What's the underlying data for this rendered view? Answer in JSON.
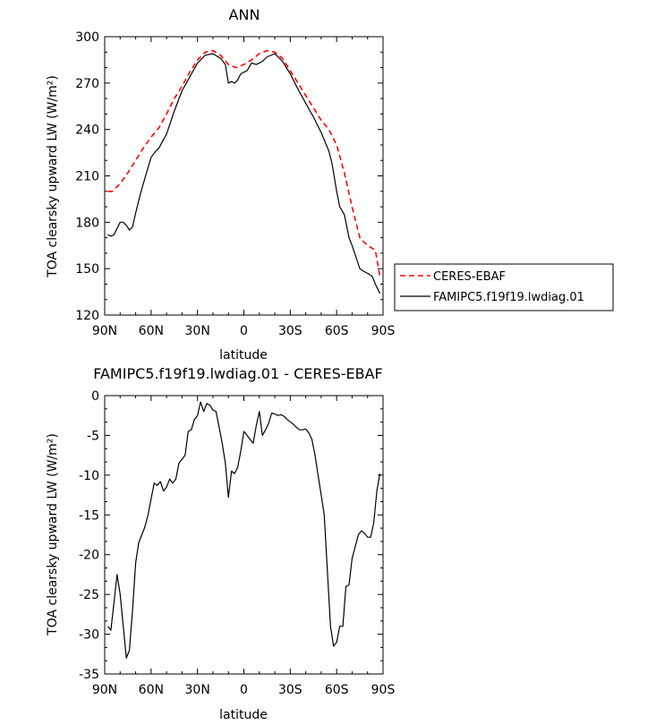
{
  "chart_data": [
    {
      "type": "line",
      "title": "ANN",
      "xlabel": "latitude",
      "ylabel": "TOA clearsky upward LW (W/m²)",
      "ylim": [
        120,
        300
      ],
      "yticks": [
        120,
        150,
        180,
        210,
        240,
        270,
        300
      ],
      "xlim": [
        90,
        -90
      ],
      "xticks": [
        90,
        60,
        30,
        0,
        -30,
        -60,
        -90
      ],
      "xticklabels": [
        "90N",
        "60N",
        "30N",
        "0",
        "30S",
        "60S",
        "90S"
      ],
      "legend": {
        "placement": "outside-right"
      },
      "series": [
        {
          "name": "CERES-EBAF",
          "color": "#ff0000",
          "dash": "dashed",
          "x": [
            88,
            85,
            80,
            75,
            70,
            65,
            60,
            55,
            50,
            45,
            40,
            35,
            30,
            25,
            20,
            15,
            10,
            5,
            0,
            -5,
            -10,
            -15,
            -20,
            -25,
            -30,
            -35,
            -40,
            -45,
            -50,
            -55,
            -60,
            -65,
            -70,
            -75,
            -80,
            -85,
            -88
          ],
          "values": [
            200,
            200,
            205,
            212,
            220,
            228,
            235,
            241,
            250,
            260,
            268,
            277,
            285,
            290,
            291,
            288,
            282,
            280,
            282,
            285,
            289,
            291,
            290,
            286,
            278,
            270,
            262,
            254,
            246,
            240,
            230,
            212,
            190,
            170,
            165,
            162,
            145
          ]
        },
        {
          "name": "FAMIPC5.f19f19.lwdiag.01",
          "color": "#000000",
          "dash": "solid",
          "x": [
            88,
            86,
            84,
            82,
            80,
            78,
            76,
            74,
            72,
            70,
            67,
            65,
            63,
            60,
            57,
            55,
            50,
            45,
            40,
            35,
            30,
            25,
            20,
            15,
            12,
            10,
            8,
            6,
            4,
            2,
            0,
            -2,
            -5,
            -8,
            -10,
            -12,
            -15,
            -20,
            -25,
            -30,
            -35,
            -40,
            -45,
            -50,
            -55,
            -57,
            -60,
            -62,
            -65,
            -68,
            -70,
            -73,
            -75,
            -78,
            -80,
            -83,
            -85,
            -88
          ],
          "values": [
            172,
            171,
            172,
            176,
            180,
            180,
            178,
            175,
            177,
            186,
            198,
            205,
            212,
            222,
            226,
            228,
            237,
            252,
            265,
            274,
            283,
            288,
            289,
            286,
            282,
            270,
            271,
            270,
            272,
            276,
            277,
            278,
            283,
            282,
            283,
            284,
            287,
            289,
            284,
            276,
            266,
            257,
            248,
            238,
            226,
            218,
            200,
            190,
            185,
            170,
            165,
            156,
            150,
            148,
            147,
            145,
            140,
            134
          ]
        }
      ]
    },
    {
      "type": "line",
      "title": "FAMIPC5.f19f19.lwdiag.01 - CERES-EBAF",
      "xlabel": "latitude",
      "ylabel": "TOA clearsky upward LW (W/m²)",
      "ylim": [
        -35,
        0
      ],
      "yticks": [
        -35,
        -30,
        -25,
        -20,
        -15,
        -10,
        -5,
        0
      ],
      "xlim": [
        90,
        -90
      ],
      "xticks": [
        90,
        60,
        30,
        0,
        -30,
        -60,
        -90
      ],
      "xticklabels": [
        "90N",
        "60N",
        "30N",
        "0",
        "30S",
        "60S",
        "90S"
      ],
      "series": [
        {
          "name": "",
          "color": "#000000",
          "dash": "solid",
          "x": [
            88,
            86,
            84,
            82,
            80,
            78,
            76,
            74,
            72,
            70,
            68,
            66,
            64,
            62,
            60,
            58,
            56,
            54,
            52,
            50,
            48,
            46,
            44,
            42,
            40,
            38,
            36,
            34,
            32,
            30,
            28,
            26,
            24,
            22,
            20,
            18,
            16,
            14,
            12,
            10,
            8,
            6,
            4,
            2,
            0,
            -2,
            -4,
            -6,
            -8,
            -10,
            -12,
            -14,
            -16,
            -18,
            -20,
            -22,
            -24,
            -26,
            -28,
            -30,
            -32,
            -34,
            -36,
            -38,
            -40,
            -42,
            -44,
            -46,
            -48,
            -50,
            -52,
            -54,
            -56,
            -58,
            -60,
            -62,
            -64,
            -66,
            -68,
            -70,
            -72,
            -74,
            -76,
            -78,
            -80,
            -82,
            -84,
            -86,
            -88
          ],
          "values": [
            -29.0,
            -29.5,
            -26.0,
            -22.5,
            -25.0,
            -29.0,
            -33.0,
            -32.0,
            -27.0,
            -21.0,
            -18.5,
            -17.5,
            -16.5,
            -15.0,
            -13.0,
            -11.0,
            -11.3,
            -10.8,
            -12.0,
            -11.5,
            -10.5,
            -11.0,
            -10.5,
            -8.5,
            -8.0,
            -7.5,
            -4.5,
            -4.3,
            -3.0,
            -2.5,
            -0.8,
            -2.0,
            -1.0,
            -1.2,
            -1.8,
            -2.0,
            -4.0,
            -6.0,
            -8.5,
            -12.8,
            -9.5,
            -9.8,
            -9.0,
            -7.0,
            -4.5,
            -5.0,
            -5.5,
            -6.0,
            -3.8,
            -2.0,
            -5.0,
            -4.3,
            -3.5,
            -2.2,
            -2.3,
            -2.5,
            -2.4,
            -2.6,
            -3.0,
            -3.3,
            -3.6,
            -4.0,
            -4.3,
            -4.3,
            -4.2,
            -4.7,
            -5.5,
            -7.5,
            -10.0,
            -12.5,
            -15.0,
            -22.0,
            -29.0,
            -31.5,
            -31.0,
            -29.0,
            -29.0,
            -24.0,
            -23.8,
            -20.5,
            -19.0,
            -17.5,
            -17.0,
            -17.3,
            -17.8,
            -17.8,
            -16.0,
            -12.0,
            -9.8
          ]
        }
      ]
    }
  ]
}
